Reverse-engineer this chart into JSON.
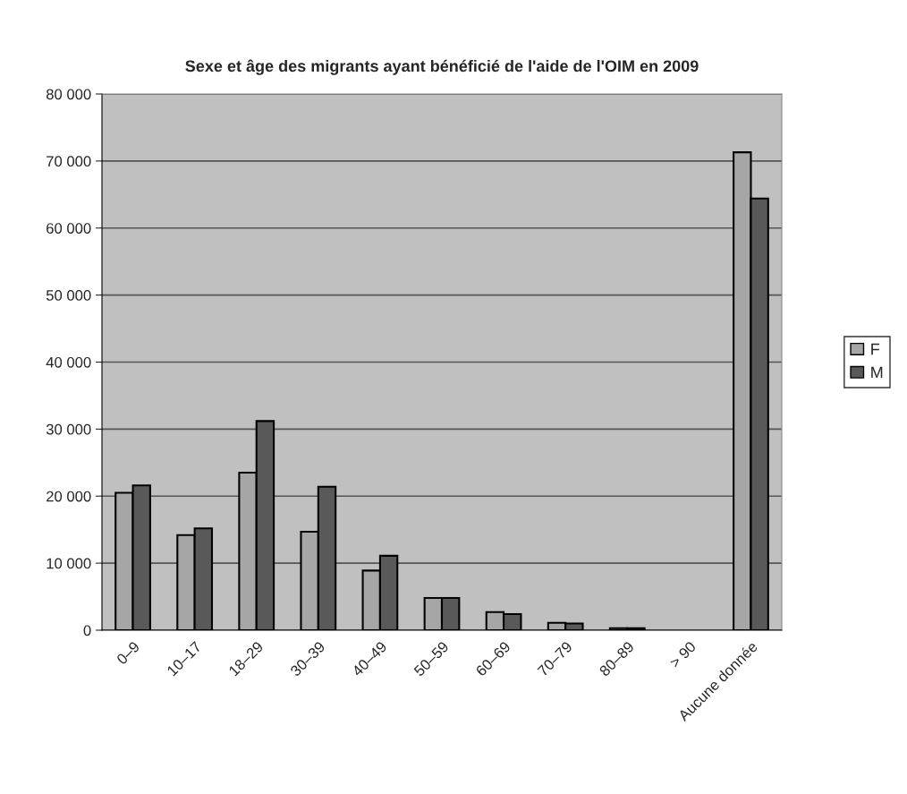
{
  "chart_data": {
    "type": "bar",
    "title": "Sexe et âge des migrants ayant bénéficié de l'aide de l'OIM en 2009",
    "categories": [
      "0–9",
      "10–17",
      "18–29",
      "30–39",
      "40–49",
      "50–59",
      "60–69",
      "70–79",
      "80–89",
      "> 90",
      "Aucune donnée"
    ],
    "series": [
      {
        "name": "F",
        "color": "#a6a6a6",
        "values": [
          20500,
          14200,
          23500,
          14700,
          8900,
          4800,
          2700,
          1100,
          300,
          0,
          71300
        ]
      },
      {
        "name": "M",
        "color": "#595959",
        "values": [
          21600,
          15200,
          31200,
          21400,
          11100,
          4800,
          2400,
          1000,
          300,
          0,
          64400
        ]
      }
    ],
    "ylim": [
      0,
      80000
    ],
    "yticks": [
      {
        "value": 0,
        "label": "0"
      },
      {
        "value": 10000,
        "label": "10 000"
      },
      {
        "value": 20000,
        "label": "20 000"
      },
      {
        "value": 30000,
        "label": "30 000"
      },
      {
        "value": 40000,
        "label": "40 000"
      },
      {
        "value": 50000,
        "label": "50 000"
      },
      {
        "value": 60000,
        "label": "60 000"
      },
      {
        "value": 70000,
        "label": "70 000"
      },
      {
        "value": 80000,
        "label": "80 000"
      }
    ],
    "grid": "y",
    "legend": "right"
  }
}
